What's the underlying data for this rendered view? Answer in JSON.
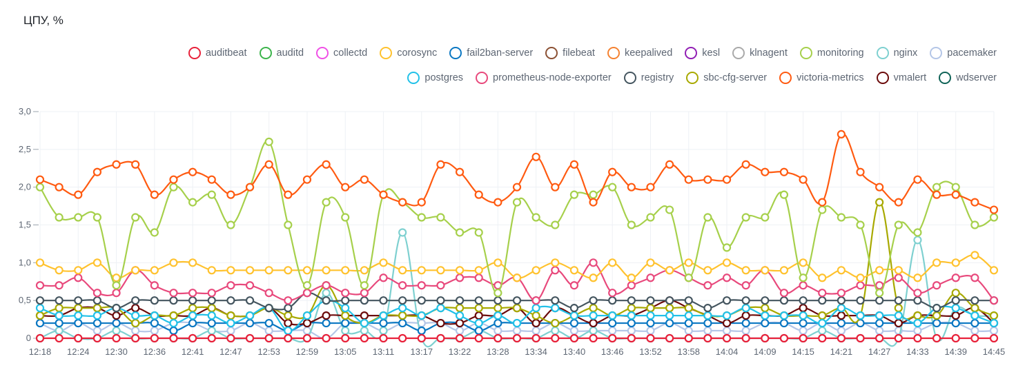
{
  "title": "ЦПУ, %",
  "chart_data": {
    "type": "line",
    "title": "ЦПУ, %",
    "xlabel": "",
    "ylabel": "",
    "ylim": [
      0,
      3.0
    ],
    "grid": true,
    "legend_position": "top-right",
    "yticks": [
      "0",
      "0,5",
      "1,0",
      "1,5",
      "2,0",
      "2,5",
      "3,0"
    ],
    "ytick_values": [
      0,
      0.5,
      1.0,
      1.5,
      2.0,
      2.5,
      3.0
    ],
    "x": [
      "12:18",
      "12:21",
      "12:24",
      "12:27",
      "12:30",
      "12:33",
      "12:36",
      "12:38",
      "12:41",
      "12:44",
      "12:47",
      "12:50",
      "12:53",
      "12:56",
      "12:59",
      "13:02",
      "13:05",
      "13:08",
      "13:11",
      "13:14",
      "13:17",
      "13:19",
      "13:22",
      "13:25",
      "13:28",
      "13:31",
      "13:34",
      "13:37",
      "13:40",
      "13:43",
      "13:46",
      "13:49",
      "13:52",
      "13:55",
      "13:58",
      "14:01",
      "14:04",
      "14:07",
      "14:09",
      "14:12",
      "14:15",
      "14:18",
      "14:21",
      "14:24",
      "14:27",
      "14:30",
      "14:33",
      "14:36",
      "14:39",
      "14:42",
      "14:45"
    ],
    "xtick_labels": [
      "12:18",
      "12:24",
      "12:30",
      "12:36",
      "12:41",
      "12:47",
      "12:53",
      "12:59",
      "13:05",
      "13:11",
      "13:17",
      "13:22",
      "13:28",
      "13:34",
      "13:40",
      "13:46",
      "13:52",
      "13:58",
      "14:04",
      "14:09",
      "14:15",
      "14:21",
      "14:27",
      "14:33",
      "14:39",
      "14:45"
    ],
    "series": [
      {
        "name": "auditbeat",
        "color": "#e8213a",
        "values": [
          0,
          0,
          0,
          0,
          0,
          0,
          0,
          0,
          0,
          0,
          0,
          0,
          0,
          0,
          0,
          0,
          0,
          0,
          0,
          0,
          0,
          0,
          0,
          0,
          0,
          0,
          0,
          0,
          0,
          0,
          0,
          0,
          0,
          0,
          0,
          0,
          0,
          0,
          0,
          0,
          0,
          0,
          0,
          0,
          0,
          0,
          0,
          0,
          0,
          0,
          0
        ]
      },
      {
        "name": "auditd",
        "color": "#3cb44b",
        "values": []
      },
      {
        "name": "collectd",
        "color": "#f050e6",
        "values": []
      },
      {
        "name": "corosync",
        "color": "#ffc22e",
        "values": [
          1.0,
          0.9,
          0.9,
          1.0,
          0.8,
          0.9,
          0.9,
          1.0,
          1.0,
          0.9,
          0.9,
          0.9,
          0.9,
          0.9,
          0.9,
          0.9,
          0.9,
          0.9,
          1.0,
          0.9,
          0.9,
          0.9,
          0.9,
          0.9,
          1.0,
          0.8,
          0.9,
          1.0,
          0.9,
          0.8,
          1.0,
          0.8,
          1.0,
          0.9,
          1.0,
          0.9,
          1.0,
          0.9,
          0.9,
          0.9,
          1.0,
          0.8,
          0.9,
          0.8,
          0.9,
          0.9,
          0.8,
          1.0,
          1.0,
          1.1,
          0.9
        ]
      },
      {
        "name": "fail2ban-server",
        "color": "#0a77c2",
        "values": [
          0.2,
          0.2,
          0.2,
          0.2,
          0.2,
          0.2,
          0.2,
          0.1,
          0.2,
          0.2,
          0.2,
          0.2,
          0.2,
          0.1,
          0.2,
          0.2,
          0.2,
          0.2,
          0.2,
          0.2,
          0.1,
          0.2,
          0.2,
          0.1,
          0.2,
          0.2,
          0.2,
          0.2,
          0.2,
          0.2,
          0.2,
          0.2,
          0.2,
          0.2,
          0.2,
          0.2,
          0.2,
          0.2,
          0.2,
          0.2,
          0.2,
          0.2,
          0.2,
          0.2,
          0.2,
          0.2,
          0.2,
          0.2,
          0.2,
          0.2,
          0.2
        ]
      },
      {
        "name": "filebeat",
        "color": "#8b5033",
        "values": []
      },
      {
        "name": "keepalived",
        "color": "#f58231",
        "values": []
      },
      {
        "name": "kesl",
        "color": "#911eb4",
        "values": []
      },
      {
        "name": "klnagent",
        "color": "#a9a9a9",
        "values": []
      },
      {
        "name": "monitoring",
        "color": "#a6d04b",
        "values": [
          2.0,
          1.6,
          1.6,
          1.6,
          0.7,
          1.6,
          1.4,
          2.0,
          1.8,
          1.9,
          1.5,
          2.0,
          2.6,
          1.5,
          0.7,
          1.8,
          1.6,
          0.7,
          1.9,
          1.8,
          1.6,
          1.6,
          1.4,
          1.4,
          0.6,
          1.8,
          1.6,
          1.5,
          1.9,
          1.9,
          2.0,
          1.5,
          1.6,
          1.7,
          0.8,
          1.6,
          1.2,
          1.6,
          1.6,
          1.9,
          0.8,
          1.7,
          1.6,
          1.5,
          0.6,
          1.5,
          1.4,
          2.0,
          2.0,
          1.5,
          1.6
        ]
      },
      {
        "name": "nginx",
        "color": "#7ed0d0",
        "values": [
          0,
          0.1,
          0,
          0,
          0.1,
          0,
          0,
          0,
          0,
          0.1,
          0,
          0,
          0,
          0,
          0,
          0.6,
          0.1,
          0.1,
          0.1,
          1.4,
          0,
          0,
          0,
          0.1,
          0,
          0,
          0,
          0.1,
          0,
          0.1,
          0,
          0,
          0,
          0,
          0,
          0,
          0,
          0,
          0,
          0,
          0,
          0.1,
          0,
          0,
          0,
          0,
          1.3,
          0,
          0.4,
          0.3,
          0.3
        ]
      },
      {
        "name": "pacemaker",
        "color": "#b4c6e7",
        "values": [
          0.2,
          0.1,
          0.2,
          0.1,
          0.2,
          0.1,
          0.1,
          0.2,
          0.2,
          0.1,
          0.1,
          0.2,
          0.1,
          0.1,
          0.1,
          0,
          0.2,
          0.2,
          0.1,
          0.2,
          0.2,
          0.2,
          0.1,
          0.2,
          0.1,
          0.1,
          0.1,
          0.2,
          0.1,
          0.1,
          0.1,
          0.1,
          0.1,
          0.2,
          0.1,
          0.1,
          0.1,
          0.1,
          0.2,
          0.2,
          0.1,
          0.2,
          0.1,
          0.2,
          0.1,
          0.1,
          0.1,
          0.2,
          0.2,
          0.1,
          0.1
        ]
      },
      {
        "name": "postgres",
        "color": "#22c1e8",
        "values": [
          0.4,
          0.3,
          0.3,
          0.3,
          0.4,
          0.3,
          0.3,
          0.2,
          0.3,
          0.3,
          0.2,
          0.3,
          0.4,
          0.1,
          0.3,
          0.5,
          0.4,
          0.2,
          0.3,
          0.4,
          0.3,
          0.4,
          0.3,
          0.2,
          0.3,
          0.2,
          0.4,
          0.4,
          0.3,
          0.3,
          0.3,
          0.3,
          0.3,
          0.3,
          0.3,
          0.3,
          0.3,
          0.4,
          0.3,
          0.3,
          0.3,
          0.2,
          0.4,
          0.3,
          0.3,
          0.3,
          0.2,
          0.4,
          0.4,
          0.3,
          0.2
        ]
      },
      {
        "name": "prometheus-node-exporter",
        "color": "#e8497c",
        "values": [
          0.7,
          0.7,
          0.8,
          0.6,
          0.6,
          0.9,
          0.7,
          0.6,
          0.6,
          0.6,
          0.7,
          0.7,
          0.6,
          0.5,
          0.6,
          0.7,
          0.6,
          0.6,
          0.8,
          0.7,
          0.7,
          0.7,
          0.8,
          0.8,
          0.7,
          0.8,
          0.5,
          0.9,
          0.7,
          1.0,
          0.6,
          0.7,
          0.8,
          0.9,
          0.8,
          0.7,
          0.8,
          0.7,
          0.9,
          0.6,
          0.7,
          0.6,
          0.6,
          0.7,
          0.7,
          0.8,
          0.6,
          0.7,
          0.8,
          0.8,
          0.5
        ]
      },
      {
        "name": "registry",
        "color": "#44555f",
        "values": [
          0.5,
          0.5,
          0.5,
          0.5,
          0.4,
          0.5,
          0.5,
          0.5,
          0.5,
          0.5,
          0.5,
          0.5,
          0.4,
          0.4,
          0.6,
          0.5,
          0.5,
          0.5,
          0.5,
          0.5,
          0.5,
          0.5,
          0.5,
          0.5,
          0.5,
          0.5,
          0.5,
          0.5,
          0.4,
          0.5,
          0.5,
          0.5,
          0.5,
          0.5,
          0.5,
          0.4,
          0.5,
          0.5,
          0.5,
          0.5,
          0.5,
          0.5,
          0.5,
          0.5,
          0.5,
          0.5,
          0.5,
          0.4,
          0.5,
          0.5,
          0.5
        ]
      },
      {
        "name": "sbc-cfg-server",
        "color": "#a8a900",
        "values": [
          0.3,
          0.4,
          0.4,
          0.4,
          0.4,
          0.2,
          0.3,
          0.3,
          0.4,
          0.4,
          0.3,
          0.3,
          0.4,
          0.3,
          0.3,
          0.7,
          0.3,
          0.2,
          0.3,
          0.3,
          0.3,
          0.4,
          0.4,
          0.4,
          0.4,
          0.4,
          0.3,
          0.2,
          0.3,
          0.4,
          0.3,
          0.4,
          0.4,
          0.4,
          0.4,
          0.3,
          0.3,
          0.4,
          0.4,
          0.3,
          0.3,
          0.3,
          0.4,
          0.3,
          1.8,
          0.4,
          0.3,
          0.3,
          0.6,
          0.4,
          0.3
        ]
      },
      {
        "name": "victoria-metrics",
        "color": "#ff5a10",
        "values": [
          2.1,
          2.0,
          1.9,
          2.2,
          2.3,
          2.3,
          1.9,
          2.1,
          2.2,
          2.1,
          1.9,
          2.0,
          2.3,
          1.9,
          2.1,
          2.3,
          2.0,
          2.1,
          1.9,
          1.8,
          1.8,
          2.3,
          2.2,
          1.9,
          1.8,
          2.0,
          2.4,
          2.0,
          2.3,
          1.8,
          2.2,
          2.0,
          2.0,
          2.3,
          2.1,
          2.1,
          2.1,
          2.3,
          2.2,
          2.2,
          2.1,
          1.8,
          2.7,
          2.2,
          2.0,
          1.8,
          2.1,
          1.9,
          1.9,
          1.8,
          1.7
        ]
      },
      {
        "name": "vmalert",
        "color": "#6b0a0a",
        "values": [
          0.3,
          0.3,
          0.4,
          0.4,
          0.3,
          0.4,
          0.3,
          0.3,
          0.3,
          0.4,
          0.3,
          0.3,
          0.4,
          0.2,
          0.2,
          0.3,
          0.3,
          0.3,
          0.3,
          0.3,
          0.3,
          0.2,
          0.2,
          0.3,
          0.3,
          0.4,
          0.2,
          0.4,
          0.3,
          0.2,
          0.3,
          0.3,
          0.4,
          0.5,
          0.4,
          0.3,
          0.2,
          0.3,
          0.3,
          0.3,
          0.4,
          0.3,
          0.3,
          0.3,
          0.3,
          0.2,
          0.3,
          0.3,
          0.3,
          0.4,
          0.2
        ]
      },
      {
        "name": "wdserver",
        "color": "#0f6357",
        "values": []
      }
    ]
  }
}
